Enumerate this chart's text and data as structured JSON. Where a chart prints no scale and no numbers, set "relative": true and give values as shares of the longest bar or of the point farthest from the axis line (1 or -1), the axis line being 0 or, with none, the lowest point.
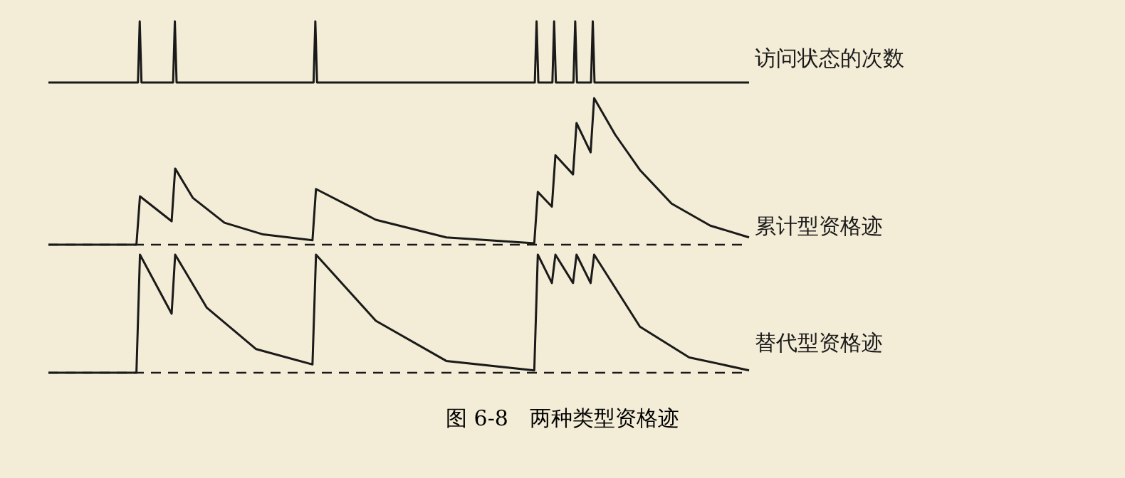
{
  "chart_data": [
    {
      "type": "line",
      "relative": true,
      "marker": "none",
      "line_style": "solid",
      "categories": [
        null,
        null,
        null,
        null,
        null,
        null,
        null,
        null,
        null,
        null,
        null,
        null,
        null,
        null,
        null,
        null,
        null,
        null,
        null,
        null,
        null,
        null,
        null,
        null,
        null,
        null,
        null,
        null,
        null,
        null,
        null,
        null,
        null,
        null,
        null,
        null,
        null,
        null,
        null,
        null,
        null,
        null,
        null,
        null,
        null,
        null,
        null,
        null,
        null,
        null,
        null,
        null,
        null,
        null,
        null,
        null,
        null,
        null,
        null,
        null,
        null,
        null,
        null,
        null,
        null,
        null,
        null,
        null,
        null,
        null,
        null,
        null,
        null,
        null,
        null,
        null,
        null,
        null,
        null,
        null,
        null,
        null,
        null,
        null,
        null,
        null,
        null,
        null,
        null,
        null,
        null,
        null,
        null,
        null,
        null,
        null,
        null,
        null,
        null,
        null,
        null,
        null,
        null,
        null,
        null,
        null,
        null,
        null,
        null,
        null,
        null,
        null,
        null,
        null,
        null,
        null,
        null,
        null,
        null,
        null,
        null,
        null,
        null,
        null,
        null,
        null,
        null,
        null,
        null,
        null,
        null,
        null,
        null,
        null,
        null,
        null,
        null,
        null,
        null,
        null,
        null,
        null,
        null,
        null,
        null,
        null,
        null,
        null,
        null,
        null,
        null,
        null,
        null,
        null,
        null,
        null,
        null,
        null,
        null,
        null,
        null,
        null,
        null,
        null,
        null,
        null,
        null,
        null,
        null,
        null,
        null,
        null,
        null,
        null,
        null,
        null,
        null,
        null,
        null,
        null,
        null,
        null,
        null,
        null,
        null,
        null,
        null,
        null,
        null,
        null,
        null,
        null,
        null,
        null,
        null,
        null,
        null,
        null,
        null,
        null,
        null,
        null,
        null,
        null,
        null,
        null,
        null,
        null,
        null,
        null,
        null,
        null,
        null,
        null,
        null,
        null,
        null,
        null,
        null,
        null,
        null,
        null,
        null,
        null,
        null,
        null,
        null,
        null,
        null,
        null,
        null,
        null,
        null,
        null,
        null,
        null,
        null,
        null,
        null,
        null,
        null,
        null,
        null,
        null,
        null,
        null,
        null,
        null,
        null,
        null,
        null,
        null,
        null,
        null,
        null,
        null,
        null,
        null,
        null,
        null,
        null,
        null,
        null,
        null,
        null,
        null,
        null,
        null,
        null,
        null,
        null,
        null,
        null,
        null,
        null,
        null,
        null,
        null,
        null,
        null,
        null,
        null,
        null,
        null,
        null,
        null,
        null,
        null,
        null,
        null,
        null,
        null,
        null,
        null,
        null,
        null,
        null,
        null,
        null,
        null,
        null,
        null,
        null,
        null,
        null,
        null,
        null,
        null,
        null,
        null,
        null,
        null,
        null,
        null,
        null,
        null,
        null,
        null,
        null,
        null,
        null,
        null,
        null,
        null,
        null,
        null,
        null,
        null,
        null,
        null,
        null,
        null,
        null,
        null,
        null,
        null,
        null,
        null,
        null,
        null,
        null,
        null,
        null,
        null,
        null,
        null,
        null,
        null,
        null,
        null,
        null,
        null,
        null,
        null,
        null,
        null,
        null,
        null,
        null,
        null,
        null,
        null,
        null,
        null,
        null,
        null,
        null,
        null,
        null,
        null,
        null,
        null,
        null,
        null,
        null,
        null,
        null,
        null,
        null,
        null,
        null,
        null,
        null,
        null,
        null,
        null,
        null,
        null,
        null,
        null,
        null,
        null,
        null,
        null,
        null,
        null,
        null,
        null,
        null,
        null
      ],
      "series": [
        {
          "name": "访问状态的次数",
          "color": "#1a1a1a",
          "values": [
            0,
            null,
            null,
            null,
            null,
            null,
            null,
            null,
            null,
            null,
            null,
            null,
            null,
            null,
            null,
            null,
            null,
            null,
            null,
            null,
            null,
            null,
            null,
            null,
            null,
            null,
            null,
            null,
            null,
            null,
            null,
            null,
            null,
            null,
            null,
            null,
            null,
            null,
            null,
            null,
            null,
            null,
            null,
            null,
            null,
            null,
            null,
            null,
            null,
            null,
            null,
            0,
            1,
            0,
            null,
            null,
            null,
            null,
            null,
            null,
            null,
            null,
            null,
            null,
            null,
            null,
            null,
            null,
            null,
            null,
            null,
            0,
            1,
            0,
            null,
            null,
            null,
            null,
            null,
            null,
            null,
            null,
            null,
            null,
            null,
            null,
            null,
            null,
            null,
            null,
            null,
            null,
            null,
            null,
            null,
            null,
            null,
            null,
            null,
            null,
            null,
            null,
            null,
            null,
            null,
            null,
            null,
            null,
            null,
            null,
            null,
            null,
            null,
            null,
            null,
            null,
            null,
            null,
            null,
            null,
            null,
            null,
            null,
            null,
            null,
            null,
            null,
            null,
            null,
            null,
            null,
            null,
            null,
            null,
            null,
            null,
            null,
            null,
            null,
            null,
            null,
            null,
            null,
            null,
            null,
            null,
            null,
            null,
            null,
            null,
            null,
            0,
            1,
            0,
            null,
            null,
            null,
            null,
            null,
            null,
            null,
            null,
            null,
            null,
            null,
            null,
            null,
            null,
            null,
            null,
            null,
            null,
            null,
            null,
            null,
            null,
            null,
            null,
            null,
            null,
            null,
            null,
            null,
            null,
            null,
            null,
            null,
            null,
            null,
            null,
            null,
            null,
            null,
            null,
            null,
            null,
            null,
            null,
            null,
            null,
            null,
            null,
            null,
            null,
            null,
            null,
            null,
            null,
            null,
            null,
            null,
            null,
            null,
            null,
            null,
            null,
            null,
            null,
            null,
            null,
            null,
            null,
            null,
            null,
            null,
            null,
            null,
            null,
            null,
            null,
            null,
            null,
            null,
            null,
            null,
            null,
            null,
            null,
            null,
            null,
            null,
            null,
            null,
            null,
            null,
            null,
            null,
            null,
            null,
            null,
            null,
            null,
            null,
            null,
            null,
            null,
            null,
            null,
            null,
            null,
            null,
            null,
            null,
            null,
            null,
            null,
            null,
            null,
            null,
            null,
            null,
            null,
            null,
            null,
            null,
            null,
            null,
            0,
            1,
            0,
            null,
            null,
            null,
            null,
            null,
            null,
            null,
            0,
            1,
            0,
            null,
            null,
            null,
            null,
            null,
            null,
            null,
            null,
            null,
            0,
            1,
            0,
            null,
            null,
            null,
            null,
            null,
            null,
            null,
            0,
            1,
            0,
            null,
            null,
            null,
            null,
            null,
            null,
            null,
            null,
            null,
            null,
            null,
            null,
            null,
            null,
            null,
            null,
            null,
            null,
            null,
            null,
            null,
            null,
            null,
            null,
            null,
            null,
            null,
            null,
            null,
            null,
            null,
            null,
            null,
            null,
            null,
            null,
            null,
            null,
            null,
            null,
            null,
            null,
            null,
            null,
            null,
            null,
            null,
            null,
            null,
            null,
            null,
            null,
            null,
            null,
            null,
            null,
            null,
            null,
            null,
            null,
            null,
            null,
            null,
            null,
            null,
            null,
            null,
            null,
            null,
            null,
            null,
            null,
            null,
            null,
            null,
            null,
            null,
            null,
            null,
            null,
            null,
            null,
            null,
            null,
            null,
            null,
            null,
            0
          ]
        }
      ]
    },
    {
      "type": "line",
      "relative": true,
      "marker": "none",
      "line_style": "solid",
      "ref_lines": [
        {
          "axis": "y",
          "value": 0,
          "color": "#1a1a1a",
          "line_style": "dashed"
        }
      ],
      "categories": [
        null,
        null,
        null,
        null,
        null,
        null,
        null,
        null,
        null,
        null,
        null,
        null,
        null,
        null,
        null,
        null,
        null,
        null,
        null,
        null,
        null,
        null,
        null,
        null,
        null,
        null,
        null,
        null,
        null,
        null,
        null,
        null,
        null,
        null,
        null,
        null,
        null,
        null,
        null,
        null,
        null,
        null,
        null,
        null,
        null,
        null,
        null,
        null,
        null,
        null,
        null,
        null,
        null,
        null,
        null,
        null,
        null,
        null,
        null,
        null,
        null,
        null,
        null,
        null,
        null,
        null,
        null,
        null,
        null,
        null,
        null,
        null,
        null,
        null,
        null,
        null,
        null,
        null,
        null,
        null,
        null,
        null,
        null,
        null,
        null,
        null,
        null,
        null,
        null,
        null,
        null,
        null,
        null,
        null,
        null,
        null,
        null,
        null,
        null,
        null,
        null,
        null,
        null,
        null,
        null,
        null,
        null,
        null,
        null,
        null,
        null,
        null,
        null,
        null,
        null,
        null,
        null,
        null,
        null,
        null,
        null,
        null,
        null,
        null,
        null,
        null,
        null,
        null,
        null,
        null,
        null,
        null,
        null,
        null,
        null,
        null,
        null,
        null,
        null,
        null,
        null,
        null,
        null,
        null,
        null,
        null,
        null,
        null,
        null,
        null,
        null,
        null,
        null,
        null,
        null,
        null,
        null,
        null,
        null,
        null,
        null,
        null,
        null,
        null,
        null,
        null,
        null,
        null,
        null,
        null,
        null,
        null,
        null,
        null,
        null,
        null,
        null,
        null,
        null,
        null,
        null,
        null,
        null,
        null,
        null,
        null,
        null,
        null,
        null,
        null,
        null,
        null,
        null,
        null,
        null,
        null,
        null,
        null,
        null,
        null
      ],
      "series": [
        {
          "name": "累计型资格迹",
          "color": "#1a1a1a",
          "values": [
            0,
            null,
            null,
            null,
            null,
            null,
            null,
            null,
            null,
            null,
            null,
            null,
            null,
            null,
            null,
            null,
            null,
            null,
            null,
            null,
            null,
            null,
            null,
            null,
            null,
            0,
            0.33,
            null,
            null,
            null,
            null,
            null,
            null,
            null,
            null,
            0.16,
            0.52,
            null,
            null,
            null,
            null,
            0.32,
            null,
            null,
            null,
            null,
            null,
            null,
            null,
            null,
            0.15,
            null,
            null,
            null,
            null,
            null,
            null,
            null,
            null,
            null,
            null,
            0.07,
            null,
            null,
            null,
            null,
            null,
            null,
            null,
            null,
            null,
            null,
            null,
            null,
            null,
            0.03,
            0.38,
            null,
            null,
            null,
            null,
            null,
            null,
            null,
            null,
            null,
            null,
            null,
            null,
            null,
            null,
            null,
            null,
            0.17,
            null,
            null,
            null,
            null,
            null,
            null,
            null,
            null,
            null,
            null,
            null,
            null,
            null,
            null,
            null,
            null,
            null,
            null,
            null,
            0.05,
            null,
            null,
            null,
            null,
            null,
            null,
            null,
            null,
            null,
            null,
            null,
            null,
            null,
            null,
            null,
            null,
            null,
            null,
            null,
            null,
            null,
            null,
            null,
            null,
            0.01,
            0.36,
            null,
            null,
            null,
            0.26,
            0.61,
            null,
            null,
            null,
            null,
            0.48,
            0.83,
            null,
            null,
            null,
            0.63,
            1,
            null,
            null,
            null,
            null,
            null,
            0.75,
            null,
            null,
            null,
            null,
            null,
            null,
            0.51,
            null,
            null,
            null,
            null,
            null,
            null,
            null,
            null,
            0.28,
            null,
            null,
            null,
            null,
            null,
            null,
            null,
            null,
            null,
            null,
            0.13,
            null,
            null,
            null,
            null,
            null,
            null,
            null,
            null,
            null,
            null,
            0.05
          ]
        }
      ]
    },
    {
      "type": "line",
      "relative": true,
      "marker": "none",
      "line_style": "solid",
      "ref_lines": [
        {
          "axis": "y",
          "value": 0,
          "color": "#1a1a1a",
          "line_style": "dashed"
        }
      ],
      "annotations": [
        "图 6-8　两种类型资格迹"
      ],
      "categories": [
        null,
        null,
        null,
        null,
        null,
        null,
        null,
        null,
        null,
        null,
        null,
        null,
        null,
        null,
        null,
        null,
        null,
        null,
        null,
        null,
        null,
        null,
        null,
        null,
        null,
        null,
        null,
        null,
        null,
        null,
        null,
        null,
        null,
        null,
        null,
        null,
        null,
        null,
        null,
        null,
        null,
        null,
        null,
        null,
        null,
        null,
        null,
        null,
        null,
        null,
        null,
        null,
        null,
        null,
        null,
        null,
        null,
        null,
        null,
        null,
        null,
        null,
        null,
        null,
        null,
        null,
        null,
        null,
        null,
        null,
        null,
        null,
        null,
        null,
        null,
        null,
        null,
        null,
        null,
        null,
        null,
        null,
        null,
        null,
        null,
        null,
        null,
        null,
        null,
        null,
        null,
        null,
        null,
        null,
        null,
        null,
        null,
        null,
        null,
        null,
        null,
        null,
        null,
        null,
        null,
        null,
        null,
        null,
        null,
        null,
        null,
        null,
        null,
        null,
        null,
        null,
        null,
        null,
        null,
        null,
        null,
        null,
        null,
        null,
        null,
        null,
        null,
        null,
        null,
        null,
        null,
        null,
        null,
        null,
        null,
        null,
        null,
        null,
        null,
        null,
        null,
        null,
        null,
        null,
        null,
        null,
        null,
        null,
        null,
        null,
        null,
        null,
        null,
        null,
        null,
        null,
        null,
        null,
        null,
        null,
        null,
        null,
        null,
        null,
        null,
        null,
        null,
        null,
        null,
        null,
        null,
        null,
        null,
        null,
        null,
        null,
        null,
        null,
        null,
        null,
        null,
        null,
        null,
        null,
        null,
        null,
        null,
        null,
        null,
        null,
        null,
        null,
        null,
        null,
        null,
        null,
        null,
        null,
        null,
        null
      ],
      "series": [
        {
          "name": "替代型资格迹",
          "color": "#1a1a1a",
          "values": [
            0,
            null,
            null,
            null,
            null,
            null,
            null,
            null,
            null,
            null,
            null,
            null,
            null,
            null,
            null,
            null,
            null,
            null,
            null,
            null,
            null,
            null,
            null,
            null,
            null,
            0,
            1,
            null,
            null,
            null,
            null,
            null,
            null,
            null,
            null,
            0.5,
            1,
            null,
            null,
            null,
            null,
            null,
            null,
            null,
            null,
            0.55,
            null,
            null,
            null,
            null,
            null,
            null,
            null,
            null,
            null,
            null,
            null,
            null,
            null,
            0.2,
            null,
            null,
            null,
            null,
            null,
            null,
            null,
            null,
            null,
            null,
            null,
            null,
            null,
            null,
            null,
            0.07,
            1,
            null,
            null,
            null,
            null,
            null,
            null,
            null,
            null,
            null,
            null,
            null,
            null,
            null,
            null,
            null,
            null,
            0.44,
            null,
            null,
            null,
            null,
            null,
            null,
            null,
            null,
            null,
            null,
            null,
            null,
            null,
            null,
            null,
            null,
            null,
            null,
            null,
            0.1,
            null,
            null,
            null,
            null,
            null,
            null,
            null,
            null,
            null,
            null,
            null,
            null,
            null,
            null,
            null,
            null,
            null,
            null,
            null,
            null,
            null,
            null,
            null,
            null,
            0.02,
            1,
            null,
            null,
            null,
            0.76,
            1,
            null,
            null,
            null,
            null,
            0.76,
            1,
            null,
            null,
            null,
            0.76,
            1,
            null,
            null,
            null,
            null,
            null,
            null,
            null,
            null,
            null,
            null,
            null,
            null,
            0.39,
            null,
            null,
            null,
            null,
            null,
            null,
            null,
            null,
            null,
            null,
            null,
            null,
            null,
            0.13,
            null,
            null,
            null,
            null,
            null,
            null,
            null,
            null,
            null,
            null,
            null,
            null,
            null,
            null,
            null,
            null,
            0.02
          ]
        }
      ]
    }
  ]
}
